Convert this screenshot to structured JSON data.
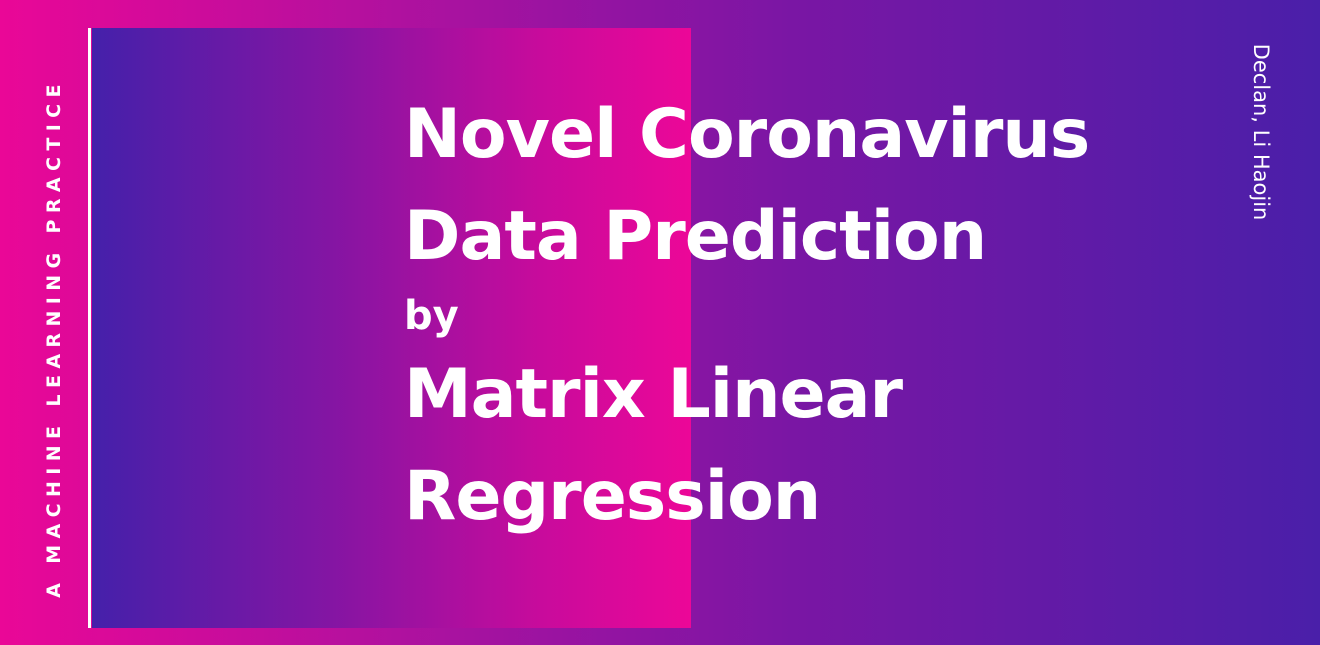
{
  "side_label": "A MACHINE LEARNING PRACTICE",
  "author": "Declan, Li Haojin",
  "title": {
    "line1": "Novel Coronavirus",
    "line2": "Data Prediction",
    "line3": "by",
    "line4": "Matrix Linear",
    "line5": "Regression"
  },
  "colors": {
    "pink": "#ea0797",
    "purple": "#4a1fa9",
    "text": "#ffffff"
  }
}
